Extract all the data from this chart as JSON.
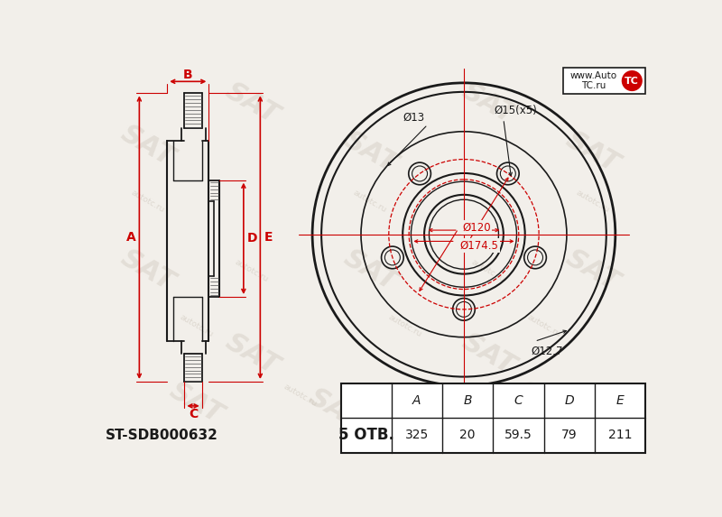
{
  "bg_color": "#f2efea",
  "line_color": "#1a1a1a",
  "red_color": "#cc0000",
  "white": "#ffffff",
  "title_code": "ST-SDB000632",
  "bolts_label": "5 ОТВ.",
  "table_headers": [
    "A",
    "B",
    "C",
    "D",
    "E"
  ],
  "table_values": [
    "325",
    "20",
    "59.5",
    "79",
    "211"
  ],
  "dim_A": "A",
  "dim_B": "B",
  "dim_C": "C",
  "dim_D": "D",
  "dim_E": "E",
  "label_d13": "Ø13",
  "label_d15": "Ø15(x5)",
  "label_d120": "Ø120",
  "label_d1745": "Ø174.5",
  "label_d127": "Ø12.7",
  "watermark_text": "AUTOTC.RU",
  "logo_text": "www.Auto",
  "logo_tc": "TC",
  "logo_url": "TC.ru"
}
